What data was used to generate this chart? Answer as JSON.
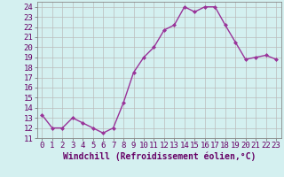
{
  "x": [
    0,
    1,
    2,
    3,
    4,
    5,
    6,
    7,
    8,
    9,
    10,
    11,
    12,
    13,
    14,
    15,
    16,
    17,
    18,
    19,
    20,
    21,
    22,
    23
  ],
  "y": [
    13.3,
    12.0,
    12.0,
    13.0,
    12.5,
    12.0,
    11.5,
    12.0,
    14.5,
    17.5,
    19.0,
    20.0,
    21.7,
    22.2,
    24.0,
    23.5,
    24.0,
    24.0,
    22.2,
    20.5,
    18.8,
    19.0,
    19.2,
    18.8
  ],
  "line_color": "#993399",
  "marker": "D",
  "marker_size": 2.0,
  "linewidth": 1.0,
  "bg_color": "#d4f0f0",
  "grid_color": "#bbbbbb",
  "xlabel": "Windchill (Refroidissement éolien,°C)",
  "xlabel_fontsize": 7,
  "tick_fontsize": 6.5,
  "ylim": [
    11,
    24.5
  ],
  "yticks": [
    11,
    12,
    13,
    14,
    15,
    16,
    17,
    18,
    19,
    20,
    21,
    22,
    23,
    24
  ],
  "xticks": [
    0,
    1,
    2,
    3,
    4,
    5,
    6,
    7,
    8,
    9,
    10,
    11,
    12,
    13,
    14,
    15,
    16,
    17,
    18,
    19,
    20,
    21,
    22,
    23
  ],
  "xlim": [
    -0.5,
    23.5
  ]
}
